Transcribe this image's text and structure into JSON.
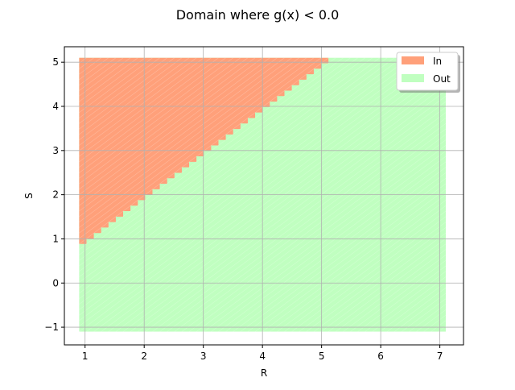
{
  "chart_data": {
    "type": "area",
    "title": "Domain where g(x) < 0.0",
    "xlabel": "R",
    "ylabel": "S",
    "xlim": [
      0.65,
      7.4
    ],
    "ylim": [
      -1.4,
      5.35
    ],
    "xticks": [
      1,
      2,
      3,
      4,
      5,
      6,
      7
    ],
    "yticks": [
      -1,
      0,
      1,
      2,
      3,
      4,
      5
    ],
    "grid": true,
    "legend_position": "top-right",
    "domain": {
      "x": [
        0.9,
        7.1
      ],
      "y": [
        -1.1,
        5.1
      ]
    },
    "boundary": [
      [
        0.9,
        0.9
      ],
      [
        5.1,
        5.1
      ]
    ],
    "series": [
      {
        "name": "In",
        "color": "#ffa07a",
        "region": "above-boundary"
      },
      {
        "name": "Out",
        "color": "#c0ffc0",
        "region": "below-boundary"
      }
    ],
    "grid_steps": 50
  }
}
